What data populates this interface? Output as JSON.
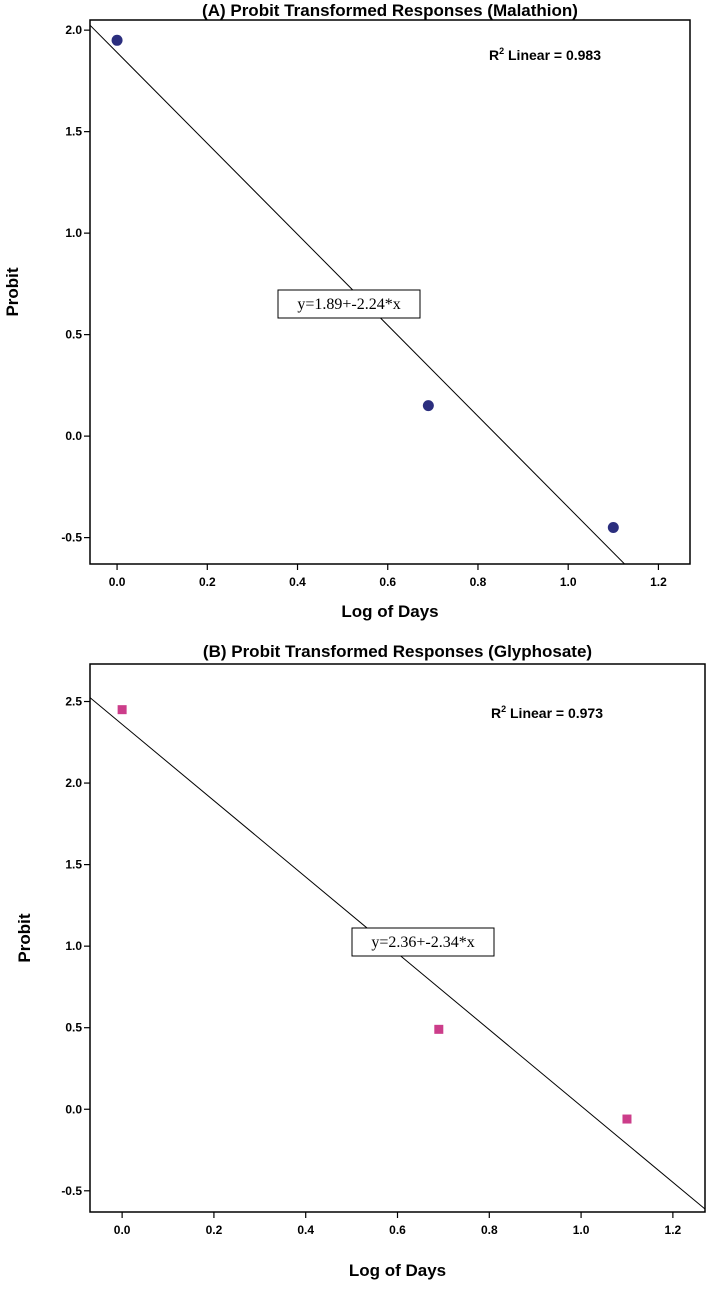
{
  "chart_data": [
    {
      "type": "scatter",
      "title": "(A) Probit Transformed Responses (Malathion)",
      "xlabel": "Log of Days",
      "ylabel": "Probit",
      "xlim": [
        -0.06,
        1.27
      ],
      "ylim": [
        -0.63,
        2.05
      ],
      "x_ticks": [
        "0.0",
        "0.2",
        "0.4",
        "0.6",
        "0.8",
        "1.0",
        "1.2"
      ],
      "x_tick_values": [
        0.0,
        0.2,
        0.4,
        0.6,
        0.8,
        1.0,
        1.2
      ],
      "y_ticks": [
        "2.0",
        "1.5",
        "1.0",
        "0.5",
        "0.0",
        "-0.5"
      ],
      "y_tick_values": [
        2.0,
        1.5,
        1.0,
        0.5,
        0.0,
        -0.5
      ],
      "points": [
        {
          "x": 0.0,
          "y": 1.95
        },
        {
          "x": 0.69,
          "y": 0.15
        },
        {
          "x": 1.1,
          "y": -0.45
        }
      ],
      "marker": "circle",
      "marker_color": "#2b2e7e",
      "fit": {
        "intercept": 1.89,
        "slope": -2.24,
        "label": "y=1.89+-2.24*x"
      },
      "r2": {
        "label_prefix": "R",
        "label_sup": "2",
        "label_suffix": " Linear = 0.983"
      },
      "grid": false
    },
    {
      "type": "scatter",
      "title": "(B) Probit Transformed Responses (Glyphosate)",
      "xlabel": "Log of Days",
      "ylabel": "Probit",
      "xlim": [
        -0.07,
        1.27
      ],
      "ylim": [
        -0.63,
        2.73
      ],
      "x_ticks": [
        "0.0",
        "0.2",
        "0.4",
        "0.6",
        "0.8",
        "1.0",
        "1.2"
      ],
      "x_tick_values": [
        0.0,
        0.2,
        0.4,
        0.6,
        0.8,
        1.0,
        1.2
      ],
      "y_ticks": [
        "2.5",
        "2.0",
        "1.5",
        "1.0",
        "0.5",
        "0.0",
        "-0.5"
      ],
      "y_tick_values": [
        2.5,
        2.0,
        1.5,
        1.0,
        0.5,
        0.0,
        -0.5
      ],
      "points": [
        {
          "x": 0.0,
          "y": 2.45
        },
        {
          "x": 0.69,
          "y": 0.49
        },
        {
          "x": 1.1,
          "y": -0.06
        }
      ],
      "marker": "square",
      "marker_color": "#cc3d8a",
      "fit": {
        "intercept": 2.36,
        "slope": -2.34,
        "label": "y=2.36+-2.34*x"
      },
      "r2": {
        "label_prefix": "R",
        "label_sup": "2",
        "label_suffix": " Linear = 0.973"
      },
      "grid": false
    }
  ]
}
